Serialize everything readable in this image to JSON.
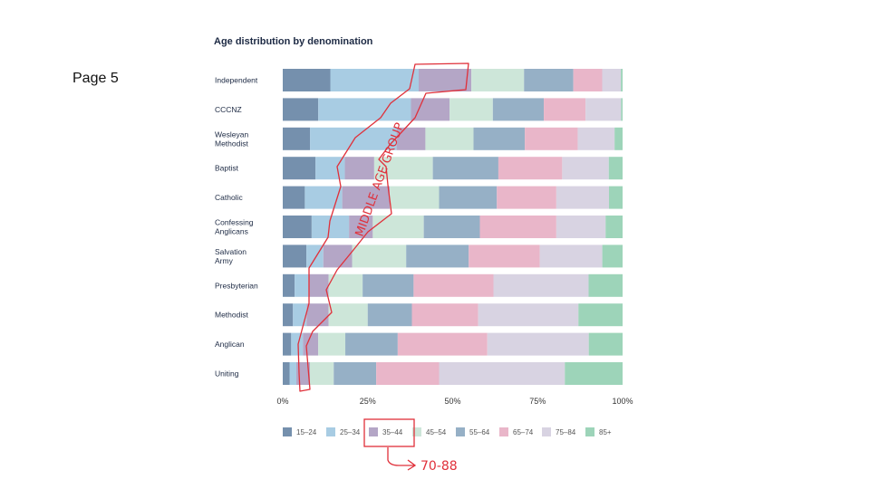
{
  "page": {
    "label": "Page 5"
  },
  "chart_data": {
    "type": "bar",
    "orientation": "horizontal",
    "stacked": true,
    "normalized": true,
    "title": "Age distribution by denomination",
    "xlabel": "",
    "ylabel": "",
    "xlim": [
      0,
      100
    ],
    "x_ticks": [
      "0%",
      "25%",
      "50%",
      "75%",
      "100%"
    ],
    "legend_position": "bottom",
    "categories": [
      "Independent",
      "CCCNZ",
      "Wesleyan Methodist",
      "Baptist",
      "Catholic",
      "Confessing Anglicans",
      "Salvation Army",
      "Presbyterian",
      "Methodist",
      "Anglican",
      "Uniting"
    ],
    "series": [
      {
        "name": "15–24",
        "color": "#7590ad",
        "values": [
          14,
          11.5,
          8.5,
          9.5,
          6.5,
          8.5,
          7,
          3.5,
          3,
          2.5,
          2
        ]
      },
      {
        "name": "25–34",
        "color": "#a8cce3",
        "values": [
          26,
          30,
          27,
          8.5,
          11,
          11,
          5,
          4,
          4,
          3.5,
          2
        ]
      },
      {
        "name": "35–44",
        "color": "#b4a6c6",
        "values": [
          15.5,
          12.5,
          9,
          8.5,
          14,
          7,
          8.5,
          6,
          6.5,
          4.5,
          4
        ]
      },
      {
        "name": "45–54",
        "color": "#cde6d9",
        "values": [
          15.5,
          14,
          15,
          17,
          14.5,
          15,
          16,
          10,
          11.5,
          8,
          7
        ]
      },
      {
        "name": "55–64",
        "color": "#96b0c6",
        "values": [
          14.5,
          16.5,
          16,
          19,
          17,
          16.5,
          18.5,
          15,
          13,
          15.5,
          12.5
        ]
      },
      {
        "name": "65–74",
        "color": "#e9b6c9",
        "values": [
          8.5,
          13.5,
          16.5,
          18.5,
          17.5,
          22.5,
          21,
          23.5,
          19.5,
          26.5,
          18.5
        ]
      },
      {
        "name": "75–84",
        "color": "#d8d3e2",
        "values": [
          5.5,
          11.5,
          11.5,
          13.5,
          15.5,
          14.5,
          18.5,
          28,
          29.5,
          30,
          37
        ]
      },
      {
        "name": "85+",
        "color": "#9dd4b9",
        "values": [
          0.5,
          0.5,
          2.5,
          4,
          4,
          5,
          6,
          10,
          13,
          10,
          17
        ]
      }
    ],
    "category_labels": [
      [
        "Independent"
      ],
      [
        "CCCNZ"
      ],
      [
        "Wesleyan",
        "Methodist"
      ],
      [
        "Baptist"
      ],
      [
        "Catholic"
      ],
      [
        "Confessing",
        "Anglicans"
      ],
      [
        "Salvation",
        "Army"
      ],
      [
        "Presbyterian"
      ],
      [
        "Methodist"
      ],
      [
        "Anglican"
      ],
      [
        "Uniting"
      ]
    ]
  },
  "annotations": {
    "region_text": "MIDDLE AGE GROUP",
    "legend_note": "70-88",
    "color": "#e0303a"
  }
}
